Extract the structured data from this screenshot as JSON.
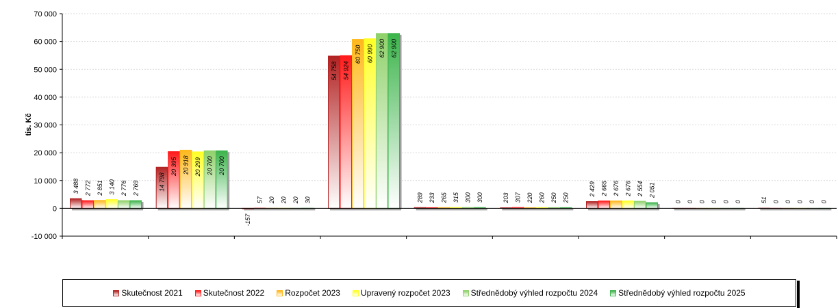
{
  "chart_data": {
    "type": "bar",
    "title": "",
    "xlabel": "",
    "ylabel": "tis. Kč",
    "ylim": [
      -10000,
      70000
    ],
    "yticks": [
      -10000,
      0,
      10000,
      20000,
      30000,
      40000,
      50000,
      60000,
      70000
    ],
    "ytick_labels": [
      "-10 000",
      "0",
      "10 000",
      "20 000",
      "30 000",
      "40 000",
      "50 000",
      "60 000",
      "70 000"
    ],
    "grid": true,
    "legend_position": "bottom",
    "categories": [
      "",
      "",
      "",
      "",
      "",
      "",
      "",
      "",
      ""
    ],
    "series": [
      {
        "name": "Skutečnost 2021",
        "color": "#b22222",
        "values": [
          3488,
          14798,
          -157,
          54758,
          289,
          203,
          2429,
          0,
          51
        ],
        "labels": [
          "3 488",
          "14 798",
          "-157",
          "54 758",
          "289",
          "203",
          "2 429",
          "0",
          "51"
        ]
      },
      {
        "name": "Skutečnost 2022",
        "color": "#ff1a1a",
        "values": [
          2772,
          20395,
          57,
          54924,
          233,
          307,
          2665,
          0,
          0
        ],
        "labels": [
          "2 772",
          "20 395",
          "57",
          "54 924",
          "233",
          "307",
          "2 665",
          "0",
          "0"
        ]
      },
      {
        "name": "Rozpočet 2023",
        "color": "#ffb81c",
        "values": [
          2851,
          20918,
          20,
          60750,
          265,
          220,
          2676,
          0,
          0
        ],
        "labels": [
          "2 851",
          "20 918",
          "20",
          "60 750",
          "265",
          "220",
          "2 676",
          "0",
          "0"
        ]
      },
      {
        "name": "Upravený rozpočet 2023",
        "color": "#ffff26",
        "values": [
          3140,
          20299,
          20,
          60990,
          315,
          260,
          2676,
          0,
          0
        ],
        "labels": [
          "3 140",
          "20 299",
          "20",
          "60 990",
          "315",
          "260",
          "2 676",
          "0",
          "0"
        ]
      },
      {
        "name": "Střednědobý výhled rozpočtu 2024",
        "color": "#8fd16a",
        "values": [
          2776,
          20700,
          20,
          62900,
          300,
          250,
          2554,
          0,
          0
        ],
        "labels": [
          "2 776",
          "20 700",
          "20",
          "62 900",
          "300",
          "250",
          "2 554",
          "0",
          "0"
        ]
      },
      {
        "name": "Střednědobý výhled rozpočtu 2025",
        "color": "#3cb44b",
        "values": [
          2769,
          20700,
          30,
          62900,
          300,
          250,
          2051,
          0,
          0
        ],
        "labels": [
          "2 769",
          "20 700",
          "30",
          "62 900",
          "300",
          "250",
          "2 051",
          "0",
          "0"
        ]
      }
    ]
  }
}
